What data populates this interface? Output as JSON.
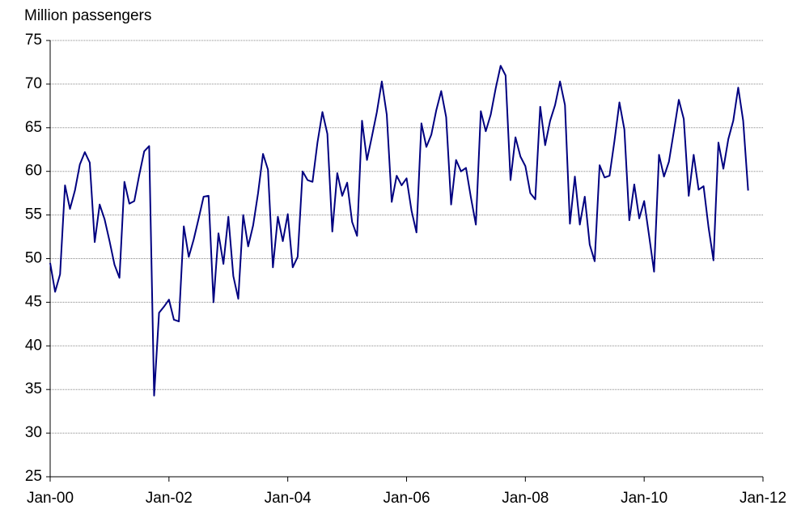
{
  "chart_data": {
    "type": "line",
    "y_label": "Million passengers",
    "x": [
      0,
      1,
      2,
      3,
      4,
      5,
      6,
      7,
      8,
      9,
      10,
      11,
      12,
      13,
      14,
      15,
      16,
      17,
      18,
      19,
      20,
      21,
      22,
      23,
      24,
      25,
      26,
      27,
      28,
      29,
      30,
      31,
      32,
      33,
      34,
      35,
      36,
      37,
      38,
      39,
      40,
      41,
      42,
      43,
      44,
      45,
      46,
      47,
      48,
      49,
      50,
      51,
      52,
      53,
      54,
      55,
      56,
      57,
      58,
      59,
      60,
      61,
      62,
      63,
      64,
      65,
      66,
      67,
      68,
      69,
      70,
      71,
      72,
      73,
      74,
      75,
      76,
      77,
      78,
      79,
      80,
      81,
      82,
      83,
      84,
      85,
      86,
      87,
      88,
      89,
      90,
      91,
      92,
      93,
      94,
      95,
      96,
      97,
      98,
      99,
      100,
      101,
      102,
      103,
      104,
      105,
      106,
      107,
      108,
      109,
      110,
      111,
      112,
      113,
      114,
      115,
      116,
      117,
      118,
      119,
      120,
      121,
      122,
      123,
      124,
      125,
      126,
      127,
      128,
      129,
      130,
      131,
      132,
      133,
      134,
      135,
      136,
      137,
      138,
      139,
      140,
      141
    ],
    "series": [
      {
        "color": "#000080",
        "values": [
          49.5,
          46.2,
          48.2,
          58.4,
          55.7,
          57.8,
          60.8,
          62.2,
          61.0,
          51.9,
          56.2,
          54.5,
          52.0,
          49.3,
          47.8,
          58.8,
          56.3,
          56.6,
          59.6,
          62.3,
          62.9,
          34.3,
          43.8,
          44.5,
          45.3,
          43.0,
          42.8,
          53.7,
          50.2,
          52.2,
          54.6,
          57.1,
          57.2,
          45.0,
          52.9,
          49.4,
          54.8,
          48.0,
          45.4,
          55.0,
          51.4,
          53.8,
          57.5,
          62.0,
          60.2,
          49.0,
          54.8,
          52.0,
          55.1,
          49.0,
          50.2,
          60.0,
          59.0,
          58.8,
          63.3,
          66.8,
          64.3,
          53.1,
          59.8,
          57.2,
          58.7,
          54.2,
          52.6,
          65.8,
          61.3,
          64.0,
          66.8,
          70.3,
          66.5,
          56.5,
          59.5,
          58.4,
          59.2,
          55.5,
          53.0,
          65.5,
          62.8,
          64.2,
          67.0,
          69.2,
          66.2,
          56.2,
          61.3,
          60.0,
          60.4,
          57.0,
          53.9,
          66.9,
          64.6,
          66.5,
          69.5,
          72.1,
          71.0,
          59.0,
          63.9,
          61.7,
          60.6,
          57.5,
          56.8,
          67.4,
          63.0,
          65.8,
          67.6,
          70.3,
          67.6,
          54.0,
          59.4,
          53.9,
          57.1,
          51.6,
          49.7,
          60.7,
          59.3,
          59.5,
          63.5,
          67.9,
          64.8,
          54.4,
          58.5,
          54.6,
          56.6,
          52.6,
          48.5,
          61.9,
          59.4,
          61.1,
          64.6,
          68.2,
          66.0,
          57.2,
          61.9,
          57.9,
          58.3,
          53.6,
          49.8,
          63.3,
          60.3,
          63.7,
          65.8,
          69.6,
          65.8,
          57.8
        ]
      }
    ],
    "xlim": [
      0,
      144
    ],
    "xticks": [
      {
        "value": 0,
        "label": "Jan-00"
      },
      {
        "value": 24,
        "label": "Jan-02"
      },
      {
        "value": 48,
        "label": "Jan-04"
      },
      {
        "value": 72,
        "label": "Jan-06"
      },
      {
        "value": 96,
        "label": "Jan-08"
      },
      {
        "value": 120,
        "label": "Jan-10"
      },
      {
        "value": 144,
        "label": "Jan-12"
      }
    ],
    "ylim": [
      25,
      75
    ],
    "yticks": [
      25,
      30,
      35,
      40,
      45,
      50,
      55,
      60,
      65,
      70,
      75
    ],
    "grid": true
  }
}
